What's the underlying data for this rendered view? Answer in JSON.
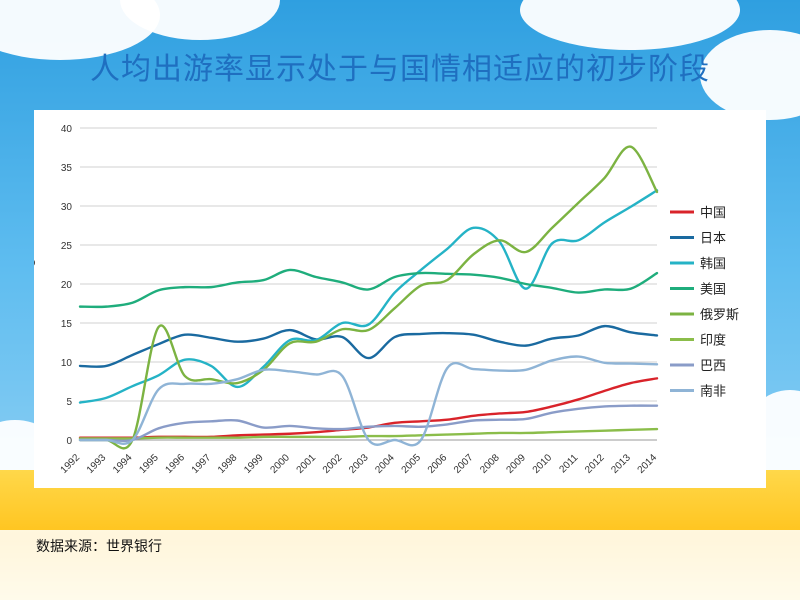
{
  "slide": {
    "title": "人均出游率显示处于与国情相适应的初步阶段",
    "source": "数据来源：世界银行"
  },
  "chart_data": {
    "type": "line",
    "title": "",
    "xlabel": "",
    "ylabel": "%",
    "ylim": [
      0,
      40
    ],
    "yticks": [
      0,
      5,
      10,
      15,
      20,
      25,
      30,
      35,
      40
    ],
    "grid": true,
    "legend_position": "right",
    "x": [
      "1992",
      "1993",
      "1994",
      "1995",
      "1996",
      "1997",
      "1998",
      "1999",
      "2000",
      "2001",
      "2002",
      "2003",
      "2004",
      "2005",
      "2006",
      "2007",
      "2008",
      "2009",
      "2010",
      "2011",
      "2012",
      "2013",
      "2014"
    ],
    "series": [
      {
        "name": "中国",
        "color": "#d9232a",
        "values": [
          0.3,
          0.3,
          0.3,
          0.4,
          0.4,
          0.4,
          0.6,
          0.7,
          0.8,
          1.0,
          1.3,
          1.6,
          2.2,
          2.4,
          2.6,
          3.1,
          3.4,
          3.6,
          4.3,
          5.2,
          6.3,
          7.3,
          7.9
        ]
      },
      {
        "name": "日本",
        "color": "#1a6aa0",
        "values": [
          9.5,
          9.5,
          10.9,
          12.3,
          13.5,
          13.1,
          12.6,
          13.0,
          14.1,
          12.9,
          13.2,
          10.5,
          13.2,
          13.6,
          13.7,
          13.5,
          12.6,
          12.1,
          13.0,
          13.4,
          14.6,
          13.8,
          13.4
        ]
      },
      {
        "name": "韩国",
        "color": "#25b3c6",
        "values": [
          4.8,
          5.4,
          6.9,
          8.3,
          10.3,
          9.5,
          6.8,
          9.4,
          12.8,
          12.8,
          15.0,
          14.8,
          18.9,
          21.8,
          24.5,
          27.2,
          25.4,
          19.4,
          25.2,
          25.6,
          27.9,
          29.9,
          32.0
        ]
      },
      {
        "name": "美国",
        "color": "#1fad7c",
        "values": [
          17.1,
          17.1,
          17.6,
          19.2,
          19.6,
          19.6,
          20.2,
          20.5,
          21.8,
          20.9,
          20.2,
          19.3,
          20.9,
          21.4,
          21.3,
          21.2,
          20.8,
          20.0,
          19.5,
          18.9,
          19.3,
          19.4,
          21.4
        ]
      },
      {
        "name": "俄罗斯",
        "color": "#7cb342",
        "values": [
          0.0,
          0.0,
          0.0,
          14.5,
          8.2,
          7.8,
          7.3,
          9.0,
          12.4,
          12.6,
          14.2,
          14.1,
          16.9,
          19.8,
          20.5,
          23.8,
          25.6,
          24.1,
          27.2,
          30.4,
          33.6,
          37.6,
          31.8
        ]
      },
      {
        "name": "印度",
        "color": "#8bbd4a",
        "values": [
          0.2,
          0.2,
          0.2,
          0.3,
          0.3,
          0.3,
          0.3,
          0.4,
          0.4,
          0.4,
          0.4,
          0.5,
          0.5,
          0.6,
          0.7,
          0.8,
          0.9,
          0.9,
          1.0,
          1.1,
          1.2,
          1.3,
          1.4
        ]
      },
      {
        "name": "巴西",
        "color": "#8a9cc8",
        "values": [
          0.0,
          0.0,
          0.0,
          1.5,
          2.2,
          2.4,
          2.5,
          1.6,
          1.8,
          1.5,
          1.4,
          1.7,
          1.8,
          1.7,
          2.0,
          2.5,
          2.6,
          2.7,
          3.5,
          4.0,
          4.3,
          4.4,
          4.4
        ]
      },
      {
        "name": "南非",
        "color": "#8fb4d6",
        "values": [
          0.0,
          0.0,
          0.0,
          6.5,
          7.2,
          7.2,
          7.8,
          9.0,
          8.8,
          8.4,
          8.2,
          0.0,
          0.0,
          0.0,
          9.2,
          9.1,
          8.9,
          9.0,
          10.2,
          10.7,
          9.9,
          9.8,
          9.7
        ]
      }
    ]
  }
}
